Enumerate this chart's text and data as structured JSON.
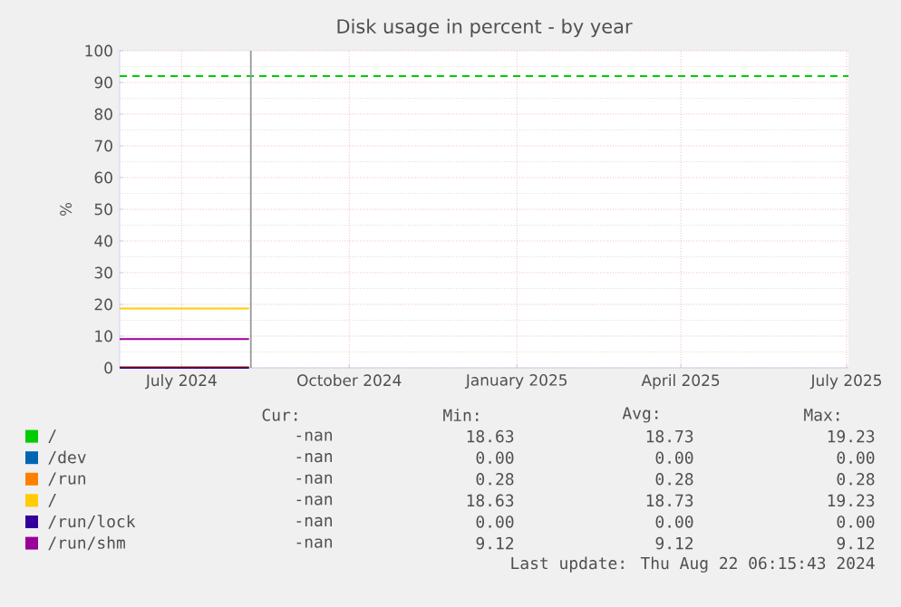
{
  "chart_data": {
    "type": "line",
    "title": "Disk usage in percent - by year",
    "ylabel": "%",
    "xlim": [
      "2024-05-28",
      "2025-07-02"
    ],
    "xticks": [
      {
        "value": "2024-07-01",
        "label": "July 2024"
      },
      {
        "value": "2024-10-01",
        "label": "October 2024"
      },
      {
        "value": "2025-01-01",
        "label": "January 2025"
      },
      {
        "value": "2025-04-01",
        "label": "April 2025"
      },
      {
        "value": "2025-07-01",
        "label": "July 2025"
      }
    ],
    "ylim": [
      0,
      100
    ],
    "yticks": [
      0,
      10,
      20,
      30,
      40,
      50,
      60,
      70,
      80,
      90,
      100
    ],
    "grid": true,
    "legend": "bottom",
    "marker": "none",
    "line_style": "solid",
    "ref_lines": [
      {
        "axis": "y",
        "value": 92,
        "color": "#00cc00",
        "line_style": "dashed"
      },
      {
        "axis": "x",
        "value": "2024-08-08",
        "color": "#999999"
      }
    ],
    "x": [
      "2024-05-28",
      "2024-08-07"
    ],
    "series": [
      {
        "name": "/",
        "color": "#00cc00",
        "values": [
          null,
          null
        ]
      },
      {
        "name": "/dev",
        "color": "#0066b3",
        "values": [
          null,
          null
        ]
      },
      {
        "name": "/run",
        "color": "#ff8000",
        "values": [
          0.3,
          0.3
        ]
      },
      {
        "name": "/",
        "color": "#ffcc00",
        "values": [
          18.7,
          18.7
        ]
      },
      {
        "name": "/run/lock",
        "color": "#330099",
        "values": [
          0,
          0
        ]
      },
      {
        "name": "/run/shm",
        "color": "#990099",
        "values": [
          9.1,
          9.1
        ]
      }
    ],
    "annotations": [
      "Cur:",
      "Min:",
      "Avg:",
      "Max:",
      "-nan",
      "18.63",
      "18.73",
      "19.23",
      "-nan",
      "0.00",
      "0.00",
      "0.00",
      "-nan",
      "0.28",
      "0.28",
      "0.28",
      "-nan",
      "18.63",
      "18.73",
      "19.23",
      "-nan",
      "0.00",
      "0.00",
      "0.00",
      "-nan",
      "9.12",
      "9.12",
      "9.12",
      "Last update: Thu Aug 22 06:15:43 2024"
    ]
  }
}
